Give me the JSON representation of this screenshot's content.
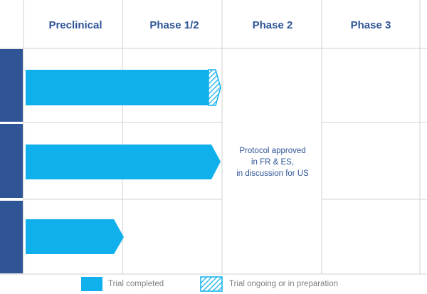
{
  "header": {
    "columns": [
      "Preclinical",
      "Phase 1/2",
      "Phase 2",
      "Phase 3"
    ]
  },
  "note": {
    "lines": [
      "Protocol approved",
      "in  FR & ES,",
      "in discussion for US"
    ]
  },
  "legend": {
    "items": [
      "Trial completed",
      "Trial ongoing or in preparation"
    ]
  }
}
